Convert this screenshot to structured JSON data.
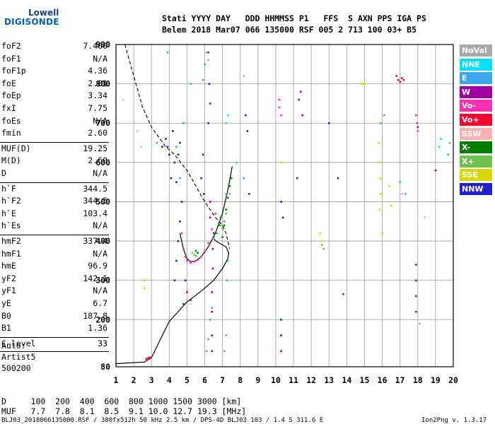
{
  "logo": {
    "line1": "Lowell",
    "line2": "DIGISONDE"
  },
  "header": {
    "row1": "Stati YYYY DAY   DDD HHMMSS P1   FFS  S AXN PPS IGA PS",
    "row2": "Belem 2018 Mar07 066 135000 RSF 005 2 713 100 03+ B5"
  },
  "params": [
    {
      "label": "foF2",
      "value": "7.400"
    },
    {
      "label": "foF1",
      "value": "N/A"
    },
    {
      "label": "foF1p",
      "value": "4.36"
    },
    {
      "label": "foE",
      "value": "2.81"
    },
    {
      "label": "foEp",
      "value": "3.34"
    },
    {
      "label": "fxI",
      "value": "7.75"
    },
    {
      "label": "foEs",
      "value": "N/A"
    },
    {
      "label": "fmin",
      "value": "2.60"
    },
    {
      "label": "MUF(D)",
      "value": "19.25"
    },
    {
      "label": "M(D)",
      "value": "2.60"
    },
    {
      "label": "D",
      "value": "N/A"
    },
    {
      "label": "h`F",
      "value": "344.5"
    },
    {
      "label": "h`F2",
      "value": "344.5"
    },
    {
      "label": "h`E",
      "value": "103.4"
    },
    {
      "label": "h`Es",
      "value": "N/A"
    },
    {
      "label": "hmF2",
      "value": "337.4"
    },
    {
      "label": "hmF1",
      "value": "N/A"
    },
    {
      "label": "hmE",
      "value": "96.9"
    },
    {
      "label": "yF2",
      "value": "142.1"
    },
    {
      "label": "yF1",
      "value": "N/A"
    },
    {
      "label": "yE",
      "value": "6.7"
    },
    {
      "label": "B0",
      "value": "187.8"
    },
    {
      "label": "B1",
      "value": "1.36"
    },
    {
      "label": "C-level",
      "value": "33"
    }
  ],
  "auto": {
    "line1": "Auto:",
    "line2": "Artist5",
    "line3": "500200"
  },
  "legend": [
    {
      "label": "NoVal",
      "color": "#a8a8a8"
    },
    {
      "label": "NNE",
      "color": "#00e0ff"
    },
    {
      "label": "E",
      "color": "#3aa8ea"
    },
    {
      "label": "W",
      "color": "#a000a0"
    },
    {
      "label": "Vo-",
      "color": "#ff30b0"
    },
    {
      "label": "Vo+",
      "color": "#ff0030"
    },
    {
      "label": "SSW",
      "color": "#ffb0b0"
    },
    {
      "label": "X-",
      "color": "#008000"
    },
    {
      "label": "X+",
      "color": "#70c050"
    },
    {
      "label": "SSE",
      "color": "#d8d800"
    },
    {
      "label": "NNW",
      "color": "#2020d0"
    }
  ],
  "bottom": {
    "d_row": "D     100  200  400  600  800 1000 1500 3000 [km]",
    "muf_row": "MUF   7.7  7.8  8.1  8.5  9.1 10.0 12.7 19.3 [MHz]"
  },
  "footer": {
    "left": "BLJ03_2018066135000.RSF / 380fx512h 50 kHz 2.5 km / DPS-4D BLJ03 103 / 1.4 S 311.6 E",
    "right": "Ion2Png v. 1.3.17"
  },
  "chart_data": {
    "type": "scatter",
    "title": "",
    "xlabel": "",
    "ylabel": "",
    "x_ticks": [
      1,
      2,
      3,
      4,
      5,
      6,
      7,
      8,
      9,
      10,
      11,
      12,
      13,
      14,
      15,
      16,
      17,
      18,
      19,
      20
    ],
    "y_ticks": [
      80,
      200,
      300,
      400,
      500,
      600,
      700,
      800,
      900
    ],
    "xlim": [
      1,
      20
    ],
    "ylim": [
      80,
      900
    ],
    "grid": true,
    "legend_position": "right",
    "series": [
      {
        "name": "E",
        "color": "#3aa8ea",
        "x": [
          6.1,
          6.2,
          6.3,
          6.4,
          7.1,
          7.2,
          7.25,
          7.3,
          7.1,
          7.2,
          3.3,
          4.8,
          5.2,
          3.9,
          15.9,
          16.1,
          19.7,
          19.8,
          17.3,
          17.0,
          5.9,
          6.0,
          4.4,
          4.6,
          7.8,
          8.2
        ],
        "y": [
          120,
          150,
          200,
          230,
          120,
          160,
          300,
          350,
          450,
          520,
          650,
          700,
          800,
          880,
          700,
          720,
          620,
          650,
          520,
          550,
          810,
          850,
          640,
          560,
          600,
          560
        ]
      },
      {
        "name": "W",
        "color": "#a000a0",
        "x": [
          6.4,
          6.4,
          6.4,
          6.4,
          6.45,
          6.45,
          6.5,
          6.3,
          6.3,
          10.3,
          10.3,
          10.3,
          17.9,
          17.9,
          17.9,
          17.9,
          18.0,
          11.4,
          11.3,
          11.5,
          5.0,
          5.2,
          6.2,
          19.0
        ],
        "y": [
          120,
          160,
          220,
          270,
          330,
          380,
          420,
          460,
          500,
          120,
          160,
          200,
          220,
          260,
          300,
          340,
          690,
          780,
          760,
          720,
          270,
          250,
          880,
          580
        ]
      },
      {
        "name": "Vo-",
        "color": "#ff30b0",
        "x": [
          4.7,
          4.8,
          4.9,
          5.0,
          5.2,
          5.4,
          5.6,
          5.8,
          6.0,
          6.2,
          6.4,
          6.6,
          10.2,
          10.2,
          10.3,
          17.9,
          17.95,
          18.0
        ],
        "y": [
          420,
          380,
          360,
          350,
          345,
          348,
          352,
          360,
          375,
          395,
          430,
          470,
          760,
          740,
          720,
          720,
          700,
          680
        ]
      },
      {
        "name": "Vo+",
        "color": "#ff0030",
        "x": [
          16.8,
          16.9,
          17.0,
          17.1,
          17.2,
          2.7,
          2.8,
          2.9
        ],
        "y": [
          820,
          810,
          805,
          815,
          810,
          100,
          102,
          104
        ]
      },
      {
        "name": "X-",
        "color": "#008000",
        "x": [
          7.0,
          7.1,
          7.2,
          7.3,
          7.4,
          7.5,
          6.8,
          6.9,
          6.6,
          6.5,
          5.5,
          5.6,
          10.3,
          10.3,
          13.8,
          4.8
        ],
        "y": [
          410,
          440,
          480,
          510,
          540,
          560,
          440,
          460,
          420,
          410,
          375,
          370,
          200,
          160,
          265,
          240
        ]
      },
      {
        "name": "X+",
        "color": "#70c050",
        "x": [
          7.0,
          7.2,
          7.4,
          5.3,
          5.4,
          5.5,
          12.6,
          12.7,
          6.7,
          6.9
        ],
        "y": [
          430,
          470,
          520,
          370,
          365,
          362,
          390,
          380,
          420,
          440
        ]
      },
      {
        "name": "SSE",
        "color": "#d8d800",
        "x": [
          2.6,
          2.6,
          15.8,
          15.8,
          15.9,
          15.9,
          15.85,
          16.0,
          12.5,
          12.6,
          10.3,
          14.8,
          14.9,
          15.0,
          16.4,
          16.5
        ],
        "y": [
          300,
          280,
          650,
          600,
          560,
          520,
          480,
          420,
          420,
          400,
          600,
          800,
          800,
          800,
          540,
          490
        ]
      },
      {
        "name": "NNW",
        "color": "#2020d0",
        "x": [
          4.3,
          4.4,
          4.5,
          4.6,
          4.7,
          4.4,
          4.3,
          4.5,
          4.6,
          3.8,
          3.9,
          4.0,
          4.2,
          4.1,
          6.2,
          6.3,
          6.25,
          10.3,
          10.4,
          5.8,
          5.9,
          5.95,
          8.3,
          8.4,
          8.5,
          11.2,
          3.6,
          4.9,
          13.0,
          13.5
        ],
        "y": [
          300,
          350,
          400,
          450,
          500,
          550,
          600,
          620,
          650,
          660,
          640,
          620,
          680,
          560,
          700,
          750,
          800,
          500,
          460,
          560,
          620,
          520,
          720,
          680,
          520,
          560,
          640,
          300,
          700,
          560
        ]
      },
      {
        "name": "NoVal",
        "color": "#a8a8a8",
        "x": [
          6.1,
          6.2,
          8.2,
          18.1
        ],
        "y": [
          880,
          860,
          820,
          190
        ]
      },
      {
        "name": "NNE",
        "color": "#00e0ff",
        "x": [
          7.2,
          7.3,
          19.2,
          19.3
        ],
        "y": [
          700,
          720,
          640,
          660
        ]
      },
      {
        "name": "SSW",
        "color": "#ffb0b0",
        "x": [
          2.2,
          2.4,
          17.1,
          18.4,
          1.4
        ],
        "y": [
          680,
          640,
          520,
          460,
          760
        ]
      }
    ]
  }
}
